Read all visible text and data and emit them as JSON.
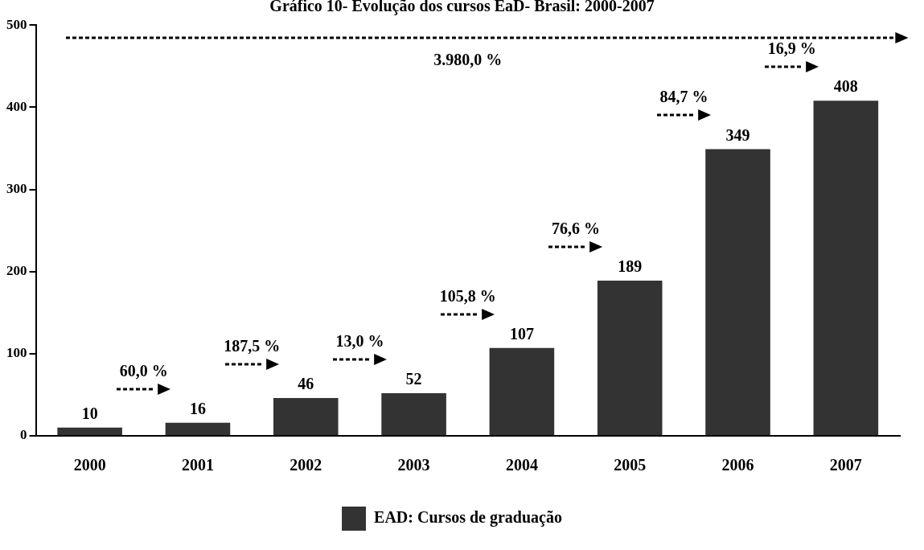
{
  "chart_data": {
    "type": "bar",
    "title": "Gráfico 10- Evolução dos cursos EaD- Brasil: 2000-2007",
    "categories": [
      "2000",
      "2001",
      "2002",
      "2003",
      "2004",
      "2005",
      "2006",
      "2007"
    ],
    "series": [
      {
        "name": "EAD: Cursos de graduação",
        "color": "#333333",
        "values": [
          10,
          16,
          46,
          52,
          107,
          189,
          349,
          408
        ]
      }
    ],
    "ylim": [
      0,
      500
    ],
    "yticks": [
      0,
      100,
      200,
      300,
      400,
      500
    ],
    "grid": false,
    "legend": "bottom",
    "data_labels": true,
    "annotations": [
      "60,0 %",
      "187,5 %",
      "13,0 %",
      "105,8 %",
      "76,6 %",
      "84,7 %",
      "16,9 %",
      "3.980,0 %"
    ]
  }
}
